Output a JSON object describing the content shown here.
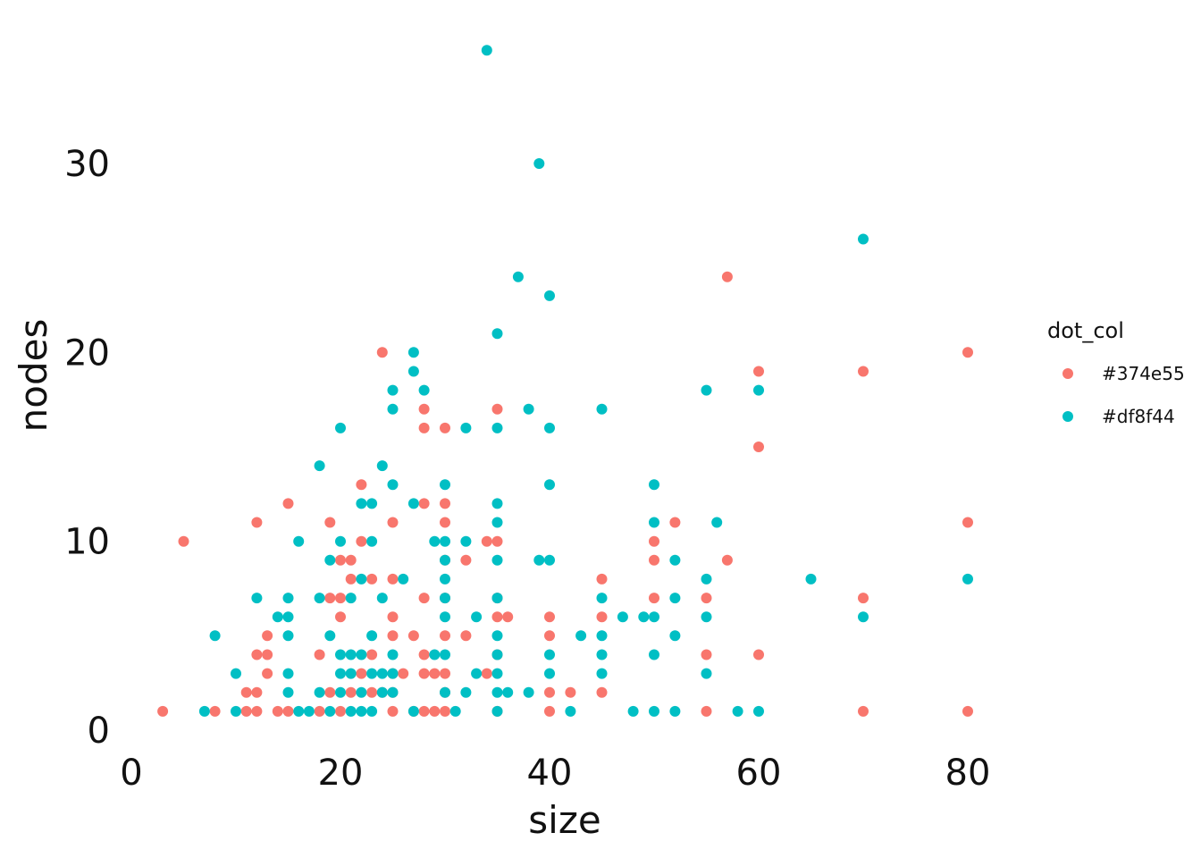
{
  "chart_data": {
    "type": "scatter",
    "xlabel": "size",
    "ylabel": "nodes",
    "xlim": [
      0,
      95
    ],
    "ylim": [
      0,
      37
    ],
    "x_ticks": [
      0,
      20,
      40,
      60,
      80
    ],
    "y_ticks": [
      0,
      10,
      20,
      30
    ],
    "grid": false,
    "legend": {
      "title": "dot_col",
      "placement": "right"
    },
    "series": [
      {
        "name": "#374e55",
        "color": "#F8766D",
        "points": [
          [
            3,
            1
          ],
          [
            5,
            10
          ],
          [
            8,
            1
          ],
          [
            11,
            2
          ],
          [
            11,
            1
          ],
          [
            12,
            11
          ],
          [
            12,
            4
          ],
          [
            12,
            2
          ],
          [
            12,
            1
          ],
          [
            13,
            5
          ],
          [
            13,
            4
          ],
          [
            13,
            3
          ],
          [
            14,
            1
          ],
          [
            15,
            12
          ],
          [
            15,
            1
          ],
          [
            18,
            4
          ],
          [
            18,
            1
          ],
          [
            19,
            11
          ],
          [
            19,
            7
          ],
          [
            19,
            2
          ],
          [
            20,
            9
          ],
          [
            20,
            7
          ],
          [
            20,
            6
          ],
          [
            20,
            1
          ],
          [
            21,
            9
          ],
          [
            21,
            8
          ],
          [
            21,
            2
          ],
          [
            22,
            13
          ],
          [
            22,
            10
          ],
          [
            22,
            3
          ],
          [
            23,
            8
          ],
          [
            23,
            4
          ],
          [
            23,
            2
          ],
          [
            24,
            20
          ],
          [
            24,
            2
          ],
          [
            25,
            11
          ],
          [
            25,
            8
          ],
          [
            25,
            6
          ],
          [
            25,
            5
          ],
          [
            25,
            3
          ],
          [
            25,
            2
          ],
          [
            25,
            1
          ],
          [
            26,
            3
          ],
          [
            27,
            5
          ],
          [
            27,
            1
          ],
          [
            28,
            17
          ],
          [
            28,
            16
          ],
          [
            28,
            12
          ],
          [
            28,
            7
          ],
          [
            28,
            4
          ],
          [
            28,
            3
          ],
          [
            28,
            1
          ],
          [
            29,
            3
          ],
          [
            29,
            1
          ],
          [
            30,
            16
          ],
          [
            30,
            12
          ],
          [
            30,
            11
          ],
          [
            30,
            9
          ],
          [
            30,
            7
          ],
          [
            30,
            5
          ],
          [
            30,
            3
          ],
          [
            30,
            2
          ],
          [
            30,
            1
          ],
          [
            32,
            9
          ],
          [
            32,
            5
          ],
          [
            34,
            10
          ],
          [
            34,
            3
          ],
          [
            35,
            17
          ],
          [
            35,
            10
          ],
          [
            35,
            7
          ],
          [
            35,
            6
          ],
          [
            35,
            4
          ],
          [
            35,
            1
          ],
          [
            36,
            6
          ],
          [
            40,
            6
          ],
          [
            40,
            5
          ],
          [
            40,
            2
          ],
          [
            40,
            1
          ],
          [
            42,
            2
          ],
          [
            45,
            8
          ],
          [
            45,
            6
          ],
          [
            45,
            2
          ],
          [
            50,
            10
          ],
          [
            50,
            9
          ],
          [
            50,
            7
          ],
          [
            52,
            11
          ],
          [
            55,
            7
          ],
          [
            55,
            4
          ],
          [
            55,
            1
          ],
          [
            57,
            24
          ],
          [
            57,
            9
          ],
          [
            60,
            19
          ],
          [
            60,
            15
          ],
          [
            60,
            4
          ],
          [
            70,
            19
          ],
          [
            70,
            7
          ],
          [
            70,
            1
          ],
          [
            80,
            20
          ],
          [
            80,
            11
          ],
          [
            80,
            1
          ]
        ]
      },
      {
        "name": "#df8f44",
        "color": "#00BFC4",
        "points": [
          [
            7,
            1
          ],
          [
            8,
            5
          ],
          [
            10,
            3
          ],
          [
            10,
            1
          ],
          [
            12,
            7
          ],
          [
            14,
            6
          ],
          [
            15,
            7
          ],
          [
            15,
            6
          ],
          [
            15,
            5
          ],
          [
            15,
            3
          ],
          [
            15,
            2
          ],
          [
            16,
            10
          ],
          [
            16,
            1
          ],
          [
            17,
            1
          ],
          [
            18,
            14
          ],
          [
            18,
            7
          ],
          [
            18,
            2
          ],
          [
            19,
            9
          ],
          [
            19,
            5
          ],
          [
            19,
            1
          ],
          [
            20,
            16
          ],
          [
            20,
            10
          ],
          [
            20,
            4
          ],
          [
            20,
            3
          ],
          [
            20,
            2
          ],
          [
            21,
            7
          ],
          [
            21,
            4
          ],
          [
            21,
            3
          ],
          [
            21,
            1
          ],
          [
            22,
            12
          ],
          [
            22,
            8
          ],
          [
            22,
            4
          ],
          [
            22,
            2
          ],
          [
            22,
            1
          ],
          [
            23,
            12
          ],
          [
            23,
            10
          ],
          [
            23,
            5
          ],
          [
            23,
            3
          ],
          [
            23,
            1
          ],
          [
            24,
            14
          ],
          [
            24,
            7
          ],
          [
            24,
            3
          ],
          [
            24,
            2
          ],
          [
            25,
            18
          ],
          [
            25,
            17
          ],
          [
            25,
            13
          ],
          [
            25,
            4
          ],
          [
            25,
            3
          ],
          [
            25,
            2
          ],
          [
            26,
            8
          ],
          [
            27,
            20
          ],
          [
            27,
            19
          ],
          [
            27,
            12
          ],
          [
            27,
            1
          ],
          [
            28,
            18
          ],
          [
            29,
            10
          ],
          [
            29,
            4
          ],
          [
            30,
            13
          ],
          [
            30,
            10
          ],
          [
            30,
            9
          ],
          [
            30,
            8
          ],
          [
            30,
            7
          ],
          [
            30,
            6
          ],
          [
            30,
            4
          ],
          [
            30,
            2
          ],
          [
            31,
            1
          ],
          [
            32,
            16
          ],
          [
            32,
            10
          ],
          [
            32,
            2
          ],
          [
            33,
            6
          ],
          [
            33,
            3
          ],
          [
            34,
            36
          ],
          [
            35,
            21
          ],
          [
            35,
            16
          ],
          [
            35,
            12
          ],
          [
            35,
            11
          ],
          [
            35,
            9
          ],
          [
            35,
            7
          ],
          [
            35,
            5
          ],
          [
            35,
            4
          ],
          [
            35,
            3
          ],
          [
            35,
            2
          ],
          [
            35,
            1
          ],
          [
            36,
            2
          ],
          [
            37,
            24
          ],
          [
            38,
            17
          ],
          [
            38,
            2
          ],
          [
            39,
            30
          ],
          [
            39,
            9
          ],
          [
            40,
            23
          ],
          [
            40,
            16
          ],
          [
            40,
            13
          ],
          [
            40,
            9
          ],
          [
            40,
            4
          ],
          [
            40,
            3
          ],
          [
            42,
            1
          ],
          [
            43,
            5
          ],
          [
            45,
            17
          ],
          [
            45,
            7
          ],
          [
            45,
            5
          ],
          [
            45,
            4
          ],
          [
            45,
            3
          ],
          [
            47,
            6
          ],
          [
            48,
            1
          ],
          [
            49,
            6
          ],
          [
            50,
            13
          ],
          [
            50,
            11
          ],
          [
            50,
            6
          ],
          [
            50,
            4
          ],
          [
            50,
            1
          ],
          [
            52,
            9
          ],
          [
            52,
            7
          ],
          [
            52,
            5
          ],
          [
            52,
            1
          ],
          [
            55,
            18
          ],
          [
            55,
            8
          ],
          [
            55,
            6
          ],
          [
            55,
            3
          ],
          [
            56,
            11
          ],
          [
            58,
            1
          ],
          [
            60,
            18
          ],
          [
            60,
            1
          ],
          [
            65,
            8
          ],
          [
            70,
            26
          ],
          [
            70,
            6
          ],
          [
            80,
            8
          ]
        ]
      }
    ]
  }
}
